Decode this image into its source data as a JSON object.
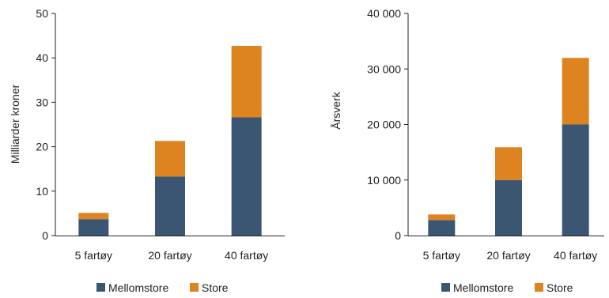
{
  "chart_data": [
    {
      "type": "bar",
      "stacked": true,
      "categories": [
        "5 fartøy",
        "20 fartøy",
        "40 fartøy"
      ],
      "series": [
        {
          "name": "Mellomstore",
          "values": [
            3.7,
            13.3,
            26.6
          ],
          "color": "#3b5673"
        },
        {
          "name": "Store",
          "values": [
            1.4,
            8.0,
            16.1
          ],
          "color": "#dd8421"
        }
      ],
      "ylabel": "Milliarder kroner",
      "ylim": [
        0,
        50
      ],
      "yticks": [
        0,
        10,
        20,
        30,
        40,
        50
      ],
      "ytick_labels": [
        "0",
        "10",
        "20",
        "30",
        "40",
        "50"
      ],
      "grid": false,
      "legend": "bottom"
    },
    {
      "type": "bar",
      "stacked": true,
      "categories": [
        "5 fartøy",
        "20 fartøy",
        "40 fartøy"
      ],
      "series": [
        {
          "name": "Mellomstore",
          "values": [
            2800,
            10000,
            20000
          ],
          "color": "#3b5673"
        },
        {
          "name": "Store",
          "values": [
            1000,
            5900,
            12000
          ],
          "color": "#dd8421"
        }
      ],
      "ylabel": "Årsverk",
      "ylim": [
        0,
        40000
      ],
      "yticks": [
        0,
        10000,
        20000,
        30000,
        40000
      ],
      "ytick_labels": [
        "0",
        "10 000",
        "20 000",
        "30 000",
        "40 000"
      ],
      "grid": false,
      "legend": "bottom"
    }
  ]
}
